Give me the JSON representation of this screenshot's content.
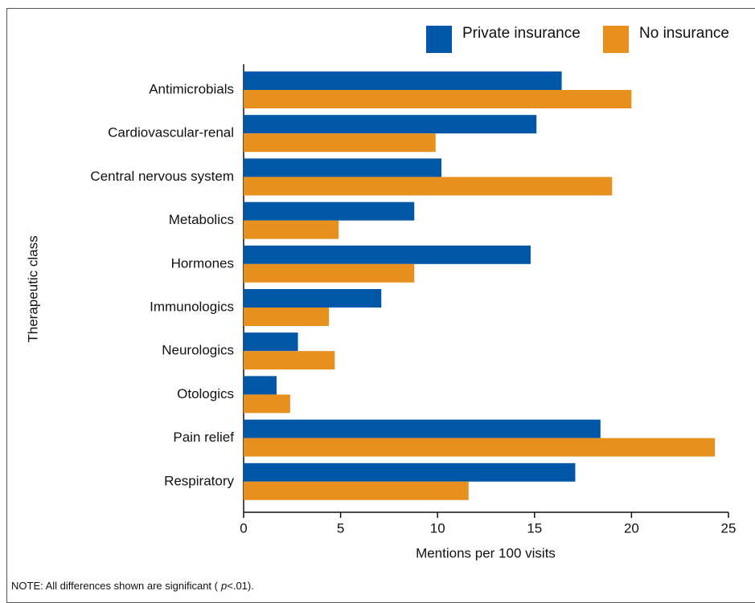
{
  "chart_data": {
    "type": "hbar",
    "categories": [
      "Antimicrobials",
      "Cardiovascular-renal",
      "Central nervous system",
      "Metabolics",
      "Hormones",
      "Immunologics",
      "Neurologics",
      "Otologics",
      "Pain relief",
      "Respiratory"
    ],
    "series": [
      {
        "name": "Private insurance",
        "color": "#0057a8",
        "values": [
          16.4,
          15.1,
          10.2,
          8.8,
          14.8,
          7.1,
          2.8,
          1.7,
          18.4,
          17.1
        ]
      },
      {
        "name": "No insurance",
        "color": "#e8901e",
        "values": [
          20.0,
          9.9,
          19.0,
          4.9,
          8.8,
          4.4,
          4.7,
          2.4,
          24.3,
          11.6
        ]
      }
    ],
    "xlim": [
      0,
      25
    ],
    "xticks": [
      0,
      5,
      10,
      15,
      20,
      25
    ],
    "x_label": "Mentions per 100 visits",
    "y_label": "Therapeutic class",
    "legend": "top-right",
    "note": {
      "prefix": "NOTE: All differences shown are significant (",
      "symbol": "p",
      "suffix": "<.01)."
    }
  }
}
